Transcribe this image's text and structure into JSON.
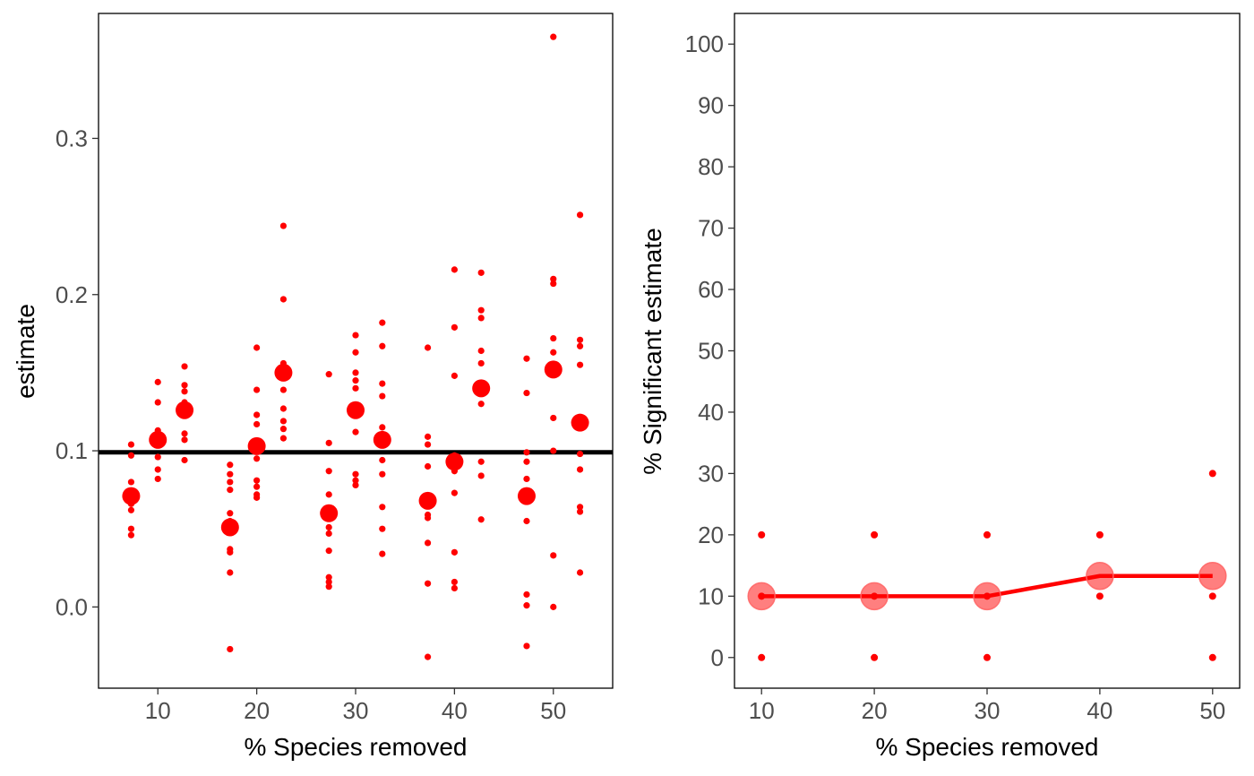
{
  "chart_data": [
    {
      "type": "scatter",
      "xlabel": "% Species removed",
      "ylabel": "estimate",
      "xlim": [
        4,
        56
      ],
      "ylim": [
        -0.052,
        0.38
      ],
      "xticks": [
        10,
        20,
        30,
        40,
        50
      ],
      "yticks": [
        0.0,
        0.1,
        0.2,
        0.3
      ],
      "ytick_labels": [
        "0.0",
        "0.1",
        "0.2",
        "0.3"
      ],
      "reference_line": 0.099,
      "grid": false,
      "legend": "none",
      "point_color": "#ff0000",
      "line_color": "#000000",
      "points": [
        {
          "x": 7.3,
          "ys": [
            0.104,
            0.097,
            0.08,
            0.071,
            0.066,
            0.062,
            0.05,
            0.046
          ]
        },
        {
          "x": 10,
          "ys": [
            0.144,
            0.131,
            0.113,
            0.107,
            0.096,
            0.088,
            0.082
          ]
        },
        {
          "x": 12.7,
          "ys": [
            0.154,
            0.142,
            0.138,
            0.131,
            0.124,
            0.111,
            0.107,
            0.094
          ]
        },
        {
          "x": 17.3,
          "ys": [
            0.091,
            0.085,
            0.08,
            0.075,
            0.06,
            0.055,
            0.037,
            0.035,
            0.022,
            -0.027
          ]
        },
        {
          "x": 20,
          "ys": [
            0.166,
            0.139,
            0.123,
            0.117,
            0.104,
            0.095,
            0.081,
            0.077,
            0.072,
            0.07
          ]
        },
        {
          "x": 22.7,
          "ys": [
            0.244,
            0.197,
            0.156,
            0.152,
            0.139,
            0.127,
            0.119,
            0.114,
            0.108
          ]
        },
        {
          "x": 27.3,
          "ys": [
            0.149,
            0.105,
            0.087,
            0.072,
            0.051,
            0.047,
            0.036,
            0.019,
            0.016,
            0.013
          ]
        },
        {
          "x": 30,
          "ys": [
            0.174,
            0.163,
            0.15,
            0.145,
            0.14,
            0.129,
            0.112,
            0.085,
            0.081,
            0.078
          ]
        },
        {
          "x": 32.7,
          "ys": [
            0.182,
            0.167,
            0.143,
            0.135,
            0.115,
            0.106,
            0.094,
            0.085,
            0.064,
            0.05,
            0.034
          ]
        },
        {
          "x": 37.3,
          "ys": [
            0.166,
            0.109,
            0.104,
            0.09,
            0.066,
            0.059,
            0.057,
            0.041,
            0.015,
            -0.032
          ]
        },
        {
          "x": 40,
          "ys": [
            0.216,
            0.179,
            0.148,
            0.097,
            0.091,
            0.087,
            0.073,
            0.035,
            0.016,
            0.012
          ]
        },
        {
          "x": 42.7,
          "ys": [
            0.214,
            0.19,
            0.185,
            0.164,
            0.156,
            0.14,
            0.13,
            0.093,
            0.084,
            0.056
          ]
        },
        {
          "x": 47.3,
          "ys": [
            0.159,
            0.137,
            0.099,
            0.093,
            0.082,
            0.055,
            0.008,
            0.001,
            -0.025
          ]
        },
        {
          "x": 50,
          "ys": [
            0.365,
            0.21,
            0.207,
            0.172,
            0.163,
            0.152,
            0.121,
            0.1,
            0.033,
            0.0
          ]
        },
        {
          "x": 52.7,
          "ys": [
            0.251,
            0.171,
            0.167,
            0.155,
            0.12,
            0.098,
            0.088,
            0.064,
            0.061,
            0.022
          ]
        }
      ],
      "means": [
        {
          "x": 7.3,
          "y": 0.071
        },
        {
          "x": 10,
          "y": 0.107
        },
        {
          "x": 12.7,
          "y": 0.126
        },
        {
          "x": 17.3,
          "y": 0.051
        },
        {
          "x": 20,
          "y": 0.103
        },
        {
          "x": 22.7,
          "y": 0.15
        },
        {
          "x": 27.3,
          "y": 0.06
        },
        {
          "x": 30,
          "y": 0.126
        },
        {
          "x": 32.7,
          "y": 0.107
        },
        {
          "x": 37.3,
          "y": 0.068
        },
        {
          "x": 40,
          "y": 0.093
        },
        {
          "x": 42.7,
          "y": 0.14
        },
        {
          "x": 47.3,
          "y": 0.071
        },
        {
          "x": 50,
          "y": 0.152
        },
        {
          "x": 52.7,
          "y": 0.118
        }
      ]
    },
    {
      "type": "line",
      "xlabel": "% Species removed",
      "ylabel": "% Significant estimate",
      "xlim": [
        7.6,
        52.4
      ],
      "ylim": [
        -5,
        105
      ],
      "xticks": [
        10,
        20,
        30,
        40,
        50
      ],
      "yticks": [
        0,
        10,
        20,
        30,
        40,
        50,
        60,
        70,
        80,
        90,
        100
      ],
      "grid": false,
      "legend": "none",
      "point_color": "#ff0000",
      "mean_fill": "#ff6666",
      "line_color": "#ff0000",
      "points": [
        {
          "x": 10,
          "ys": [
            20,
            10,
            0
          ]
        },
        {
          "x": 20,
          "ys": [
            20,
            10,
            0
          ]
        },
        {
          "x": 30,
          "ys": [
            20,
            10,
            0
          ]
        },
        {
          "x": 40,
          "ys": [
            20,
            10
          ]
        },
        {
          "x": 50,
          "ys": [
            30,
            10,
            0
          ]
        }
      ],
      "means": [
        {
          "x": 10,
          "y": 10
        },
        {
          "x": 20,
          "y": 10
        },
        {
          "x": 30,
          "y": 10
        },
        {
          "x": 40,
          "y": 13.3
        },
        {
          "x": 50,
          "y": 13.3
        }
      ]
    }
  ]
}
